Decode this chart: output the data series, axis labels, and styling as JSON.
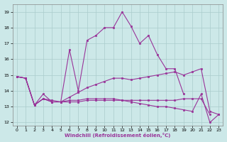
{
  "xlabel": "Windchill (Refroidissement éolien,°C)",
  "background_color": "#cce8e8",
  "line_color": "#993399",
  "grid_color": "#aadddd",
  "ylim": [
    11.8,
    19.5
  ],
  "xlim": [
    -0.5,
    23.5
  ],
  "yticks": [
    12,
    13,
    14,
    15,
    16,
    17,
    18,
    19
  ],
  "xticks": [
    0,
    1,
    2,
    3,
    4,
    5,
    6,
    7,
    8,
    9,
    10,
    11,
    12,
    13,
    14,
    15,
    16,
    17,
    18,
    19,
    20,
    21,
    22,
    23
  ],
  "series": [
    [
      14.9,
      14.8,
      13.1,
      13.8,
      13.3,
      13.3,
      16.6,
      14.0,
      17.2,
      17.5,
      18.0,
      18.0,
      19.0,
      18.1,
      17.0,
      17.5,
      16.3,
      15.4,
      15.4,
      13.8,
      null,
      null,
      null,
      null
    ],
    [
      14.9,
      14.8,
      13.1,
      13.5,
      13.3,
      13.3,
      13.6,
      13.9,
      14.2,
      14.4,
      14.6,
      14.8,
      14.8,
      14.7,
      14.8,
      14.9,
      15.0,
      15.1,
      15.2,
      15.0,
      15.2,
      15.4,
      12.7,
      12.5
    ],
    [
      14.9,
      14.8,
      13.1,
      13.5,
      13.3,
      13.3,
      13.4,
      13.4,
      13.5,
      13.5,
      13.5,
      13.5,
      13.4,
      13.3,
      13.2,
      13.1,
      13.0,
      13.0,
      12.9,
      12.8,
      12.7,
      13.8,
      12.0,
      12.5
    ],
    [
      14.9,
      14.8,
      13.1,
      13.5,
      13.4,
      13.3,
      13.3,
      13.3,
      13.4,
      13.4,
      13.4,
      13.4,
      13.4,
      13.4,
      13.4,
      13.4,
      13.4,
      13.4,
      13.4,
      13.5,
      13.5,
      13.5,
      12.5,
      null
    ]
  ]
}
